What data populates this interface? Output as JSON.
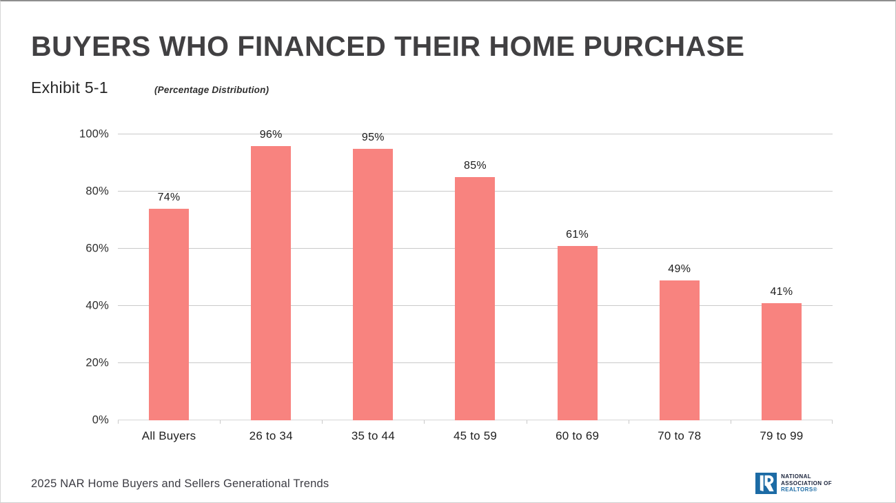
{
  "page": {
    "title": "BUYERS WHO FINANCED THEIR HOME PURCHASE",
    "exhibit": "Exhibit 5-1",
    "subtitle": "(Percentage Distribution)",
    "footer": "2025 NAR Home Buyers and Sellers Generational Trends"
  },
  "logo": {
    "line1": "NATIONAL",
    "line2": "ASSOCIATION OF",
    "line3": "REALTORS®",
    "blue": "#1c6ba5",
    "dark": "#19223a"
  },
  "chart_data": {
    "type": "bar",
    "title": "BUYERS WHO FINANCED THEIR HOME PURCHASE",
    "subtitle": "(Percentage Distribution)",
    "categories": [
      "All Buyers",
      "26 to 34",
      "35 to 44",
      "45 to 59",
      "60 to 69",
      "70 to 78",
      "79 to 99"
    ],
    "values": [
      74,
      96,
      95,
      85,
      61,
      49,
      41
    ],
    "value_labels": [
      "74%",
      "96%",
      "95%",
      "85%",
      "61%",
      "49%",
      "41%"
    ],
    "xlabel": "",
    "ylabel": "",
    "ylim": [
      0,
      100
    ],
    "yticks": [
      0,
      20,
      40,
      60,
      80,
      100
    ],
    "ytick_labels": [
      "0%",
      "20%",
      "40%",
      "60%",
      "80%",
      "100%"
    ],
    "grid": true,
    "legend": false,
    "bar_color": "#f8837f"
  }
}
